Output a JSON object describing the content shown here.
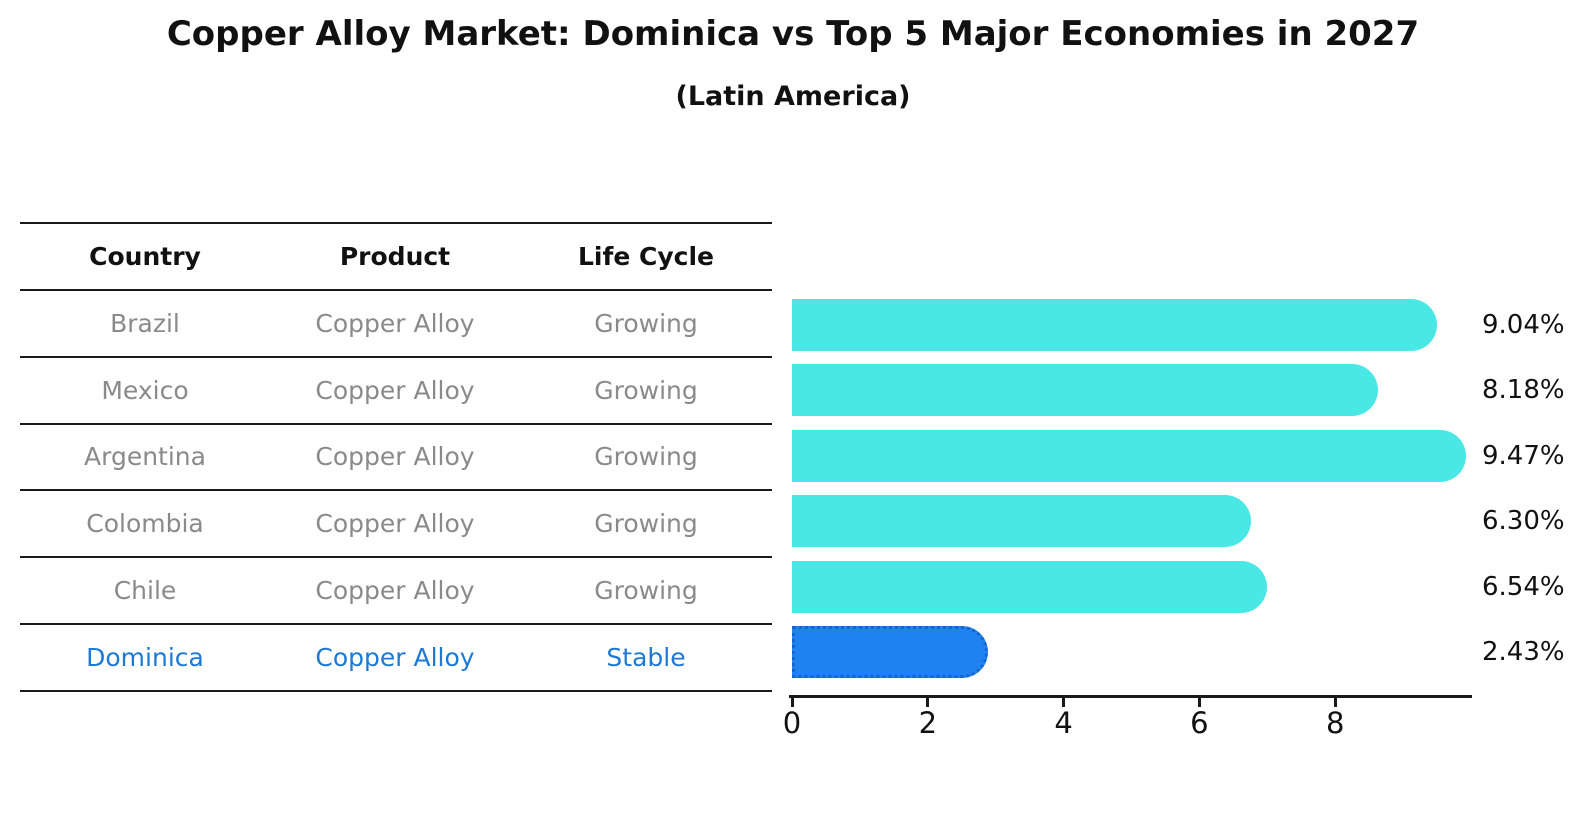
{
  "title": "Copper Alloy Market: Dominica vs Top 5 Major Economies in 2027",
  "subtitle": "(Latin America)",
  "table": {
    "headers": [
      "Country",
      "Product",
      "Life Cycle"
    ],
    "rows": [
      {
        "country": "Brazil",
        "product": "Copper Alloy",
        "life_cycle": "Growing"
      },
      {
        "country": "Mexico",
        "product": "Copper Alloy",
        "life_cycle": "Growing"
      },
      {
        "country": "Argentina",
        "product": "Copper Alloy",
        "life_cycle": "Growing"
      },
      {
        "country": "Colombia",
        "product": "Copper Alloy",
        "life_cycle": "Growing"
      },
      {
        "country": "Chile",
        "product": "Copper Alloy",
        "life_cycle": "Growing"
      },
      {
        "country": "Dominica",
        "product": "Copper Alloy",
        "life_cycle": "Stable"
      }
    ]
  },
  "chart_data": {
    "type": "bar",
    "orientation": "horizontal",
    "categories": [
      "Brazil",
      "Mexico",
      "Argentina",
      "Colombia",
      "Chile",
      "Dominica"
    ],
    "values": [
      9.04,
      8.18,
      9.47,
      6.3,
      6.54,
      2.43
    ],
    "value_labels": [
      "9.04%",
      "8.18%",
      "9.47%",
      "6.30%",
      "6.54%",
      "2.43%"
    ],
    "highlight_index": 5,
    "xticks": [
      0,
      2,
      4,
      6,
      8
    ],
    "xlim": [
      0,
      10
    ],
    "grid": false,
    "legend": false,
    "title": "Copper Alloy Market: Dominica vs Top 5 Major Economies in 2027 (Latin America)",
    "xlabel": "",
    "ylabel": ""
  },
  "colors": {
    "bar": "#49E8E5",
    "highlight_bar": "#1E82F0",
    "highlight_bar_border": "#1565CC",
    "highlight_text": "#1C79D6",
    "muted_text": "#8A8A8A",
    "line": "#1A1A1A"
  }
}
